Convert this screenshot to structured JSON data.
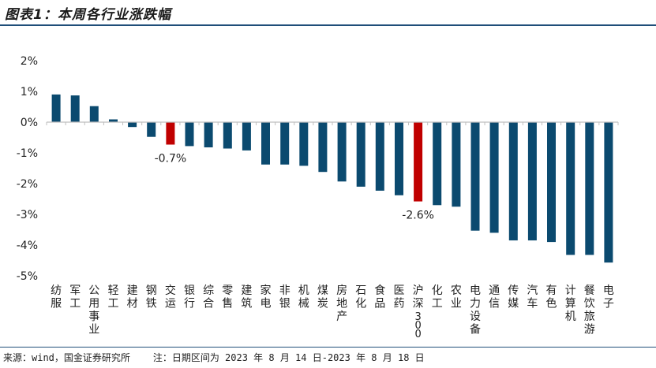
{
  "header": {
    "title": "图表1：本周各行业涨跌幅"
  },
  "footer": {
    "source": "来源：wind，国金证券研究所",
    "note": "注：日期区间为 2023 年 8 月 14 日-2023 年 8 月 18 日"
  },
  "chart_data": {
    "type": "bar",
    "title": "本周各行业涨跌幅",
    "xlabel": "",
    "ylabel": "",
    "ylim": [
      -5,
      2
    ],
    "yticks": [
      2,
      1,
      0,
      -1,
      -2,
      -3,
      -4,
      -5
    ],
    "ytick_labels": [
      "2%",
      "1%",
      "0%",
      "-1%",
      "-2%",
      "-3%",
      "-4%",
      "-5%"
    ],
    "categories": [
      "纺服",
      "军工",
      "公用事业",
      "轻工",
      "建材",
      "钢铁",
      "交运",
      "银行",
      "综合",
      "零售",
      "建筑",
      "家电",
      "非银",
      "机械",
      "煤炭",
      "房地产",
      "石化",
      "食品",
      "医药",
      "沪深300",
      "化工",
      "农业",
      "电力设备",
      "通信",
      "传媒",
      "汽车",
      "有色",
      "计算机",
      "餐饮旅游",
      "电子"
    ],
    "values": [
      0.9,
      0.87,
      0.52,
      0.09,
      -0.16,
      -0.48,
      -0.73,
      -0.78,
      -0.82,
      -0.86,
      -0.92,
      -1.38,
      -1.38,
      -1.42,
      -1.62,
      -1.93,
      -2.1,
      -2.23,
      -2.38,
      -2.58,
      -2.7,
      -2.75,
      -3.53,
      -3.6,
      -3.85,
      -3.85,
      -3.9,
      -4.32,
      -4.32,
      -4.57
    ],
    "highlight_categories": [
      "交运",
      "沪深300"
    ],
    "annotations": [
      {
        "category": "交运",
        "label": "-0.7%"
      },
      {
        "category": "沪深300",
        "label": "-2.6%"
      }
    ],
    "colors": {
      "bar": "#0b4a6f",
      "highlight": "#c00000",
      "axis": "#bfbfbf"
    }
  }
}
